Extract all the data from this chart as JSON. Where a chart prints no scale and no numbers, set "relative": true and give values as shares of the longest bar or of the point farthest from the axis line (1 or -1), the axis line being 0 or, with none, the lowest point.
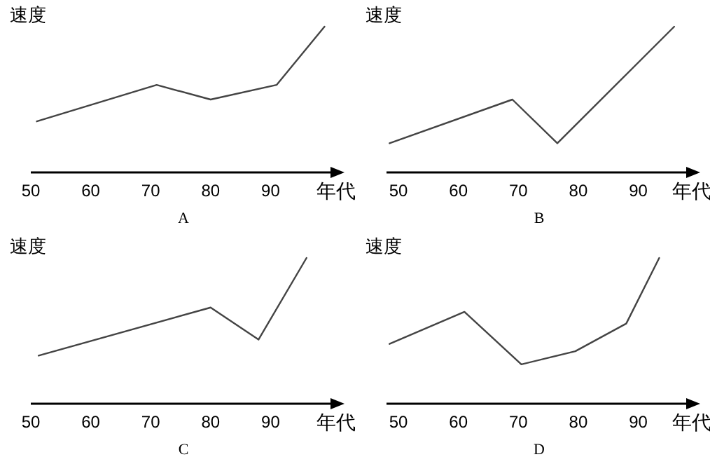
{
  "chart_data": [
    {
      "type": "line",
      "relative": true,
      "ylabel": "速度",
      "xlabel": "年代",
      "annotations": [
        "A"
      ],
      "x": [
        51,
        71,
        80,
        91,
        99
      ],
      "values": [
        0.35,
        0.6,
        0.5,
        0.6,
        1
      ],
      "color": "#444444",
      "xlim": [
        50,
        100
      ],
      "xticks": [
        50,
        60,
        70,
        80,
        90
      ]
    },
    {
      "type": "line",
      "relative": true,
      "ylabel": "速度",
      "xlabel": "年代",
      "annotations": [
        "B"
      ],
      "x": [
        48.5,
        69,
        76.5,
        96
      ],
      "values": [
        0.2,
        0.5,
        0.2,
        1
      ],
      "color": "#444444",
      "xlim": [
        48,
        98
      ],
      "xticks": [
        50,
        60,
        70,
        80,
        90
      ]
    },
    {
      "type": "line",
      "relative": true,
      "ylabel": "速度",
      "xlabel": "年代",
      "annotations": [
        "C"
      ],
      "x": [
        51.3,
        80,
        88,
        96
      ],
      "values": [
        0.33,
        0.66,
        0.44,
        1
      ],
      "color": "#444444",
      "xlim": [
        50,
        100
      ],
      "xticks": [
        50,
        60,
        70,
        80,
        90
      ]
    },
    {
      "type": "line",
      "relative": true,
      "ylabel": "速度",
      "xlabel": "年代",
      "annotations": [
        "D"
      ],
      "x": [
        48.5,
        61,
        70.5,
        79.5,
        88,
        93.5
      ],
      "values": [
        0.41,
        0.63,
        0.27,
        0.36,
        0.55,
        1
      ],
      "color": "#444444",
      "xlim": [
        48,
        98
      ],
      "xticks": [
        50,
        60,
        70,
        80,
        90
      ]
    }
  ]
}
